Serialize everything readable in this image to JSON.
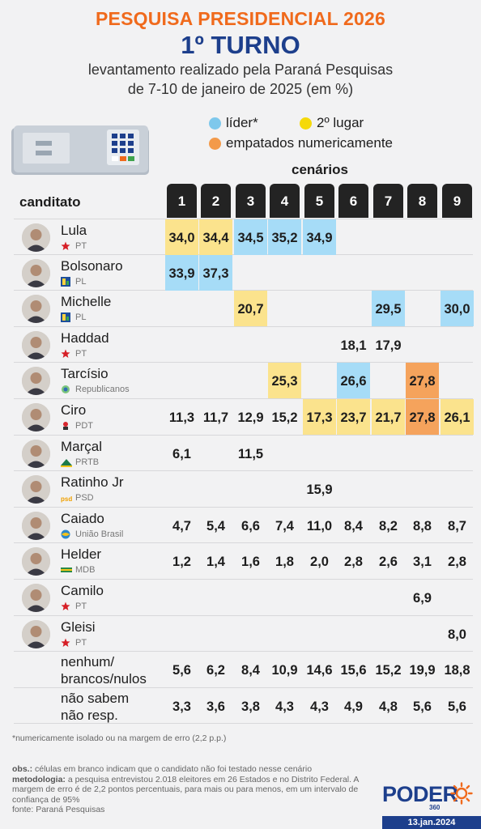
{
  "title": "PESQUISA PRESIDENCIAL 2026",
  "subtitle": "1º TURNO",
  "desc_line1": "levantamento realizado pela Paraná Pesquisas",
  "desc_line2": "de 7-10 de janeiro de 2025 (em %)",
  "legend": [
    {
      "label": "líder*",
      "color": "#7ec8ec"
    },
    {
      "label": "2º lugar",
      "color": "#f5d90a"
    },
    {
      "label": "empatados numericamente",
      "color": "#f39a4a"
    }
  ],
  "colors": {
    "leader": "#a6dcf7",
    "second": "#fbe38d",
    "tie": "#f5a35c",
    "accent": "#f06a1c",
    "brand": "#1d3f8c"
  },
  "cenarios_label": "cenários",
  "candidate_label": "canditato",
  "chart_data": {
    "type": "table",
    "scenarios": [
      "1",
      "2",
      "3",
      "4",
      "5",
      "6",
      "7",
      "8",
      "9"
    ],
    "rows": [
      {
        "name": "Lula",
        "party": "PT",
        "logo": "star-icon",
        "values": [
          "34,0",
          "34,4",
          "34,5",
          "35,2",
          "34,9",
          "",
          "",
          "",
          ""
        ],
        "highlight": [
          "second",
          "second",
          "leader",
          "leader",
          "leader",
          "",
          "",
          "",
          ""
        ]
      },
      {
        "name": "Bolsonaro",
        "party": "PL",
        "logo": "pl-icon",
        "values": [
          "33,9",
          "37,3",
          "",
          "",
          "",
          "",
          "",
          "",
          ""
        ],
        "highlight": [
          "leader",
          "leader",
          "",
          "",
          "",
          "",
          "",
          "",
          ""
        ]
      },
      {
        "name": "Michelle",
        "party": "PL",
        "logo": "pl-icon",
        "values": [
          "",
          "",
          "20,7",
          "",
          "",
          "",
          "29,5",
          "",
          "30,0"
        ],
        "highlight": [
          "",
          "",
          "second",
          "",
          "",
          "",
          "leader",
          "",
          "leader"
        ]
      },
      {
        "name": "Haddad",
        "party": "PT",
        "logo": "star-icon",
        "values": [
          "",
          "",
          "",
          "",
          "",
          "18,1",
          "17,9",
          "",
          ""
        ],
        "highlight": [
          "",
          "",
          "",
          "",
          "",
          "",
          "",
          "",
          ""
        ]
      },
      {
        "name": "Tarcísio",
        "party": "Republicanos",
        "logo": "republicanos-icon",
        "values": [
          "",
          "",
          "",
          "25,3",
          "",
          "26,6",
          "",
          "27,8",
          ""
        ],
        "highlight": [
          "",
          "",
          "",
          "second",
          "",
          "leader",
          "",
          "tie",
          ""
        ]
      },
      {
        "name": "Ciro",
        "party": "PDT",
        "logo": "pdt-icon",
        "values": [
          "11,3",
          "11,7",
          "12,9",
          "15,2",
          "17,3",
          "23,7",
          "21,7",
          "27,8",
          "26,1"
        ],
        "highlight": [
          "",
          "",
          "",
          "",
          "second",
          "second",
          "second",
          "tie",
          "second"
        ]
      },
      {
        "name": "Marçal",
        "party": "PRTB",
        "logo": "prtb-icon",
        "values": [
          "6,1",
          "",
          "11,5",
          "",
          "",
          "",
          "",
          "",
          ""
        ],
        "highlight": [
          "",
          "",
          "",
          "",
          "",
          "",
          "",
          "",
          ""
        ]
      },
      {
        "name": "Ratinho Jr",
        "party": "PSD",
        "logo": "psd-icon",
        "values": [
          "",
          "",
          "",
          "",
          "15,9",
          "",
          "",
          "",
          ""
        ],
        "highlight": [
          "",
          "",
          "",
          "",
          "",
          "",
          "",
          "",
          ""
        ]
      },
      {
        "name": "Caiado",
        "party": "União Brasil",
        "logo": "uniao-icon",
        "values": [
          "4,7",
          "5,4",
          "6,6",
          "7,4",
          "11,0",
          "8,4",
          "8,2",
          "8,8",
          "8,7"
        ],
        "highlight": [
          "",
          "",
          "",
          "",
          "",
          "",
          "",
          "",
          ""
        ]
      },
      {
        "name": "Helder",
        "party": "MDB",
        "logo": "mdb-icon",
        "values": [
          "1,2",
          "1,4",
          "1,6",
          "1,8",
          "2,0",
          "2,8",
          "2,6",
          "3,1",
          "2,8"
        ],
        "highlight": [
          "",
          "",
          "",
          "",
          "",
          "",
          "",
          "",
          ""
        ]
      },
      {
        "name": "Camilo",
        "party": "PT",
        "logo": "star-icon",
        "values": [
          "",
          "",
          "",
          "",
          "",
          "",
          "",
          "6,9",
          ""
        ],
        "highlight": [
          "",
          "",
          "",
          "",
          "",
          "",
          "",
          "",
          ""
        ]
      },
      {
        "name": "Gleisi",
        "party": "PT",
        "logo": "star-icon",
        "values": [
          "",
          "",
          "",
          "",
          "",
          "",
          "",
          "",
          "8,0"
        ],
        "highlight": [
          "",
          "",
          "",
          "",
          "",
          "",
          "",
          "",
          ""
        ]
      }
    ],
    "extra_rows": [
      {
        "label_line1": "nenhum/",
        "label_line2": "brancos/nulos",
        "values": [
          "5,6",
          "6,2",
          "8,4",
          "10,9",
          "14,6",
          "15,6",
          "15,2",
          "19,9",
          "18,8"
        ]
      },
      {
        "label_line1": "não sabem",
        "label_line2": "não resp.",
        "values": [
          "3,3",
          "3,6",
          "3,8",
          "4,3",
          "4,3",
          "4,9",
          "4,8",
          "5,6",
          "5,6"
        ]
      }
    ]
  },
  "footnote": "*numericamente isolado ou na margem de erro (2,2 p.p.)",
  "obs": {
    "obs_label": "obs.:",
    "obs_text": " células em branco indicam que o candidato não foi testado nesse cenário",
    "met_label": "metodologia:",
    "met_text": " a pesquisa entrevistou 2.018 eleitores em 26 Estados e no Distrito Federal. A margem de erro é de 2,2 pontos percentuais, para mais ou para menos, em um intervalo de confiança de 95%",
    "source": "fonte: Paraná Pesquisas"
  },
  "logo_text": "PODER",
  "logo_sub": "360",
  "date": "13.jan.2024"
}
